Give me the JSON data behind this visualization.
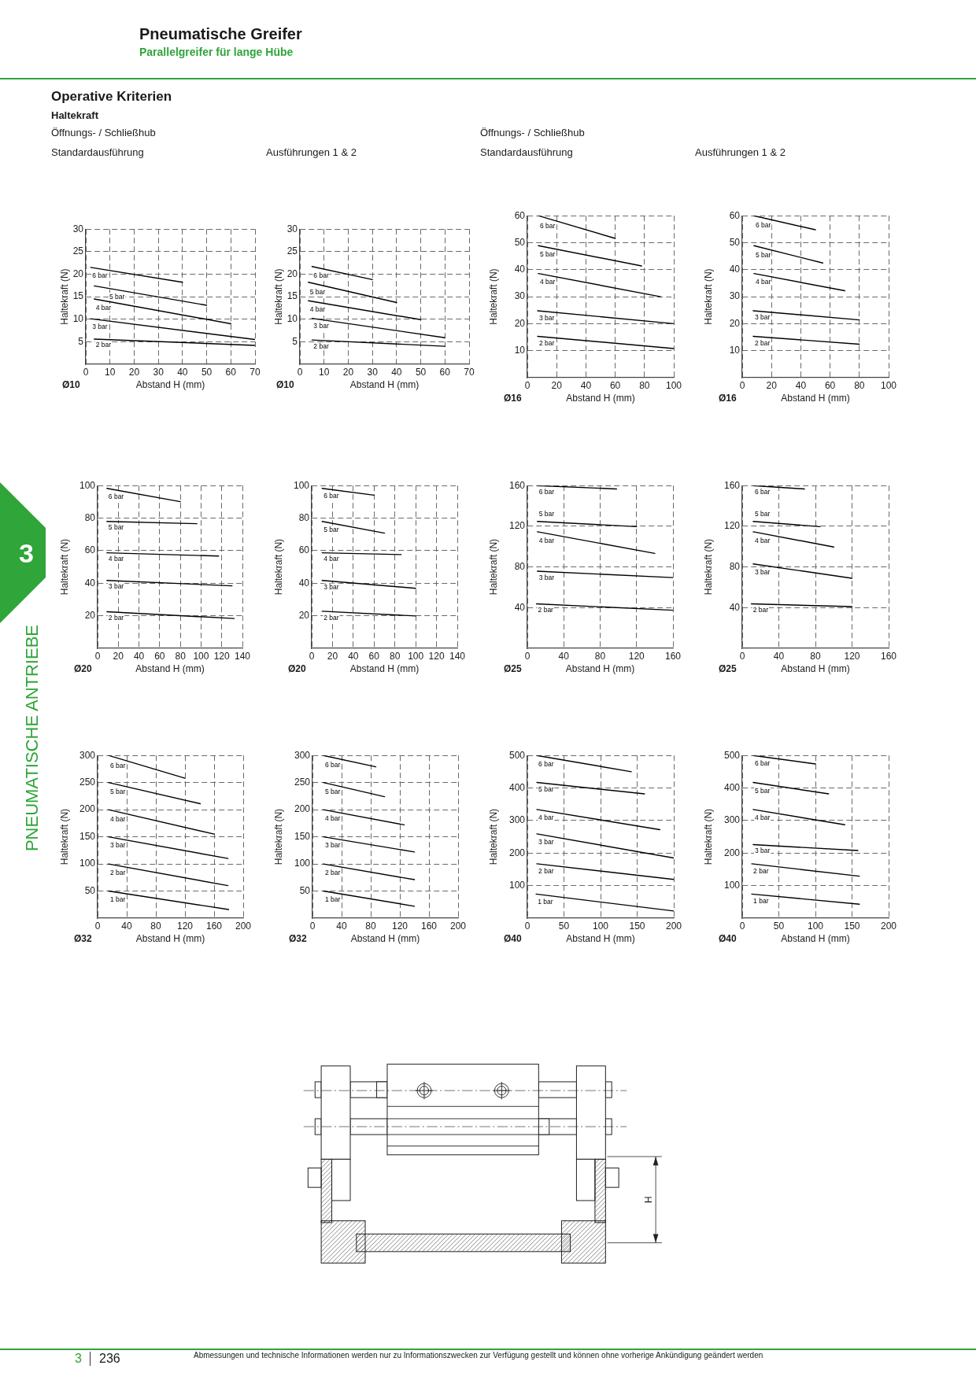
{
  "chart_data": [
    {
      "type": "other",
      "title": "Pneumatische Greifer",
      "subtitle": "Parallelgreifer für lange Hübe",
      "annotations": [
        "Operative Kriterien",
        "Haltekraft",
        "3",
        "PNEUMATISCHE ANTRIEBE",
        "3",
        "236",
        "Abmessungen und technische Informationen werden nur zu Informationszwecken zur Verfügung gestellt und können ohne vorherige Ankündigung geändert werden",
        "H"
      ]
    },
    {
      "type": "line",
      "xlabel": "Abstand H (mm)",
      "ylabel": "Haltekraft (N)",
      "annotations": [
        "Ø10",
        "Öffnungs- / Schließhub",
        "Standardausführung"
      ],
      "xlim": [
        0,
        70
      ],
      "xticks": [
        0,
        10,
        20,
        30,
        40,
        50,
        60,
        70
      ],
      "ylim": [
        0,
        30
      ],
      "yticks": [
        5,
        10,
        15,
        20,
        25,
        30
      ],
      "grid": true,
      "legend": false,
      "marker": "none",
      "line_style": "solid",
      "series": [
        {
          "name": "6 bar",
          "color": "#000000",
          "x": [
            2,
            40
          ],
          "values": [
            21.5,
            18.2
          ]
        },
        {
          "name": "5 bar",
          "color": "#000000",
          "x": [
            3.5,
            50
          ],
          "values": [
            17.4,
            13.1
          ]
        },
        {
          "name": "4 bar",
          "color": "#000000",
          "x": [
            3.5,
            60
          ],
          "values": [
            14.5,
            9
          ]
        },
        {
          "name": "3 bar",
          "color": "#000000",
          "x": [
            2,
            70
          ],
          "values": [
            10.1,
            5.5
          ]
        },
        {
          "name": "2 bar",
          "color": "#000000",
          "x": [
            3.5,
            70
          ],
          "values": [
            5.6,
            4.2
          ]
        }
      ]
    },
    {
      "type": "line",
      "xlabel": "Abstand H (mm)",
      "ylabel": "Haltekraft (N)",
      "annotations": [
        "Ø10",
        "Ausführungen 1 & 2"
      ],
      "xlim": [
        0,
        70
      ],
      "xticks": [
        0,
        10,
        20,
        30,
        40,
        50,
        60,
        70
      ],
      "ylim": [
        0,
        30
      ],
      "yticks": [
        5,
        10,
        15,
        20,
        25,
        30
      ],
      "grid": true,
      "legend": false,
      "marker": "none",
      "line_style": "solid",
      "series": [
        {
          "name": "6 bar",
          "color": "#000000",
          "x": [
            5,
            30
          ],
          "values": [
            21.7,
            18.8
          ]
        },
        {
          "name": "5 bar",
          "color": "#000000",
          "x": [
            3.5,
            40
          ],
          "values": [
            18.2,
            13.7
          ]
        },
        {
          "name": "4 bar",
          "color": "#000000",
          "x": [
            3.5,
            50
          ],
          "values": [
            14.1,
            9.9
          ]
        },
        {
          "name": "3 bar",
          "color": "#000000",
          "x": [
            5,
            60
          ],
          "values": [
            10.2,
            5.9
          ]
        },
        {
          "name": "2 bar",
          "color": "#000000",
          "x": [
            5,
            60
          ],
          "values": [
            5.4,
            4
          ]
        }
      ]
    },
    {
      "type": "line",
      "xlabel": "Abstand H (mm)",
      "ylabel": "Haltekraft (N)",
      "annotations": [
        "Ø16",
        "Öffnungs- / Schließhub",
        "Standardausführung"
      ],
      "xlim": [
        0,
        100
      ],
      "xticks": [
        0,
        20,
        40,
        60,
        80,
        100
      ],
      "ylim": [
        0,
        60
      ],
      "yticks": [
        10,
        20,
        30,
        40,
        50,
        60
      ],
      "grid": true,
      "legend": false,
      "marker": "none",
      "line_style": "solid",
      "series": [
        {
          "name": "6 bar",
          "color": "#000000",
          "x": [
            7.5,
            60
          ],
          "values": [
            60,
            51.6
          ]
        },
        {
          "name": "5 bar",
          "color": "#000000",
          "x": [
            7.5,
            78
          ],
          "values": [
            48.9,
            41.4
          ]
        },
        {
          "name": "4 bar",
          "color": "#000000",
          "x": [
            7.5,
            91
          ],
          "values": [
            38.6,
            30
          ]
        },
        {
          "name": "3 bar",
          "color": "#000000",
          "x": [
            7,
            100
          ],
          "values": [
            24.8,
            20
          ]
        },
        {
          "name": "2 bar",
          "color": "#000000",
          "x": [
            7,
            100
          ],
          "values": [
            15.3,
            10.8
          ]
        }
      ]
    },
    {
      "type": "line",
      "xlabel": "Abstand H (mm)",
      "ylabel": "Haltekraft (N)",
      "annotations": [
        "Ø16",
        "Ausführungen 1 & 2"
      ],
      "xlim": [
        0,
        100
      ],
      "xticks": [
        0,
        20,
        40,
        60,
        80,
        100
      ],
      "ylim": [
        0,
        60
      ],
      "yticks": [
        10,
        20,
        30,
        40,
        50,
        60
      ],
      "grid": true,
      "legend": false,
      "marker": "none",
      "line_style": "solid",
      "series": [
        {
          "name": "6 bar",
          "color": "#000000",
          "x": [
            8,
            50
          ],
          "values": [
            60,
            54.8
          ]
        },
        {
          "name": "5 bar",
          "color": "#000000",
          "x": [
            8,
            55
          ],
          "values": [
            48.9,
            42.5
          ]
        },
        {
          "name": "4 bar",
          "color": "#000000",
          "x": [
            8,
            70
          ],
          "values": [
            38.6,
            32.2
          ]
        },
        {
          "name": "3 bar",
          "color": "#000000",
          "x": [
            7.5,
            80
          ],
          "values": [
            24.8,
            21.4
          ]
        },
        {
          "name": "2 bar",
          "color": "#000000",
          "x": [
            7.5,
            80
          ],
          "values": [
            15.3,
            12.4
          ]
        }
      ]
    },
    {
      "type": "line",
      "xlabel": "Abstand H (mm)",
      "ylabel": "Haltekraft (N)",
      "annotations": [
        "Ø20"
      ],
      "xlim": [
        0,
        140
      ],
      "xticks": [
        0,
        20,
        40,
        60,
        80,
        100,
        120,
        140
      ],
      "ylim": [
        0,
        100
      ],
      "yticks": [
        20,
        40,
        60,
        80,
        100
      ],
      "grid": true,
      "legend": false,
      "marker": "none",
      "line_style": "solid",
      "series": [
        {
          "name": "6 bar",
          "color": "#000000",
          "x": [
            9,
            80
          ],
          "values": [
            98.3,
            90.1
          ]
        },
        {
          "name": "5 bar",
          "color": "#000000",
          "x": [
            9,
            96
          ],
          "values": [
            78,
            76.6
          ]
        },
        {
          "name": "4 bar",
          "color": "#000000",
          "x": [
            9,
            117
          ],
          "values": [
            58.7,
            56.7
          ]
        },
        {
          "name": "3 bar",
          "color": "#000000",
          "x": [
            9,
            130
          ],
          "values": [
            41.7,
            38.4
          ]
        },
        {
          "name": "2 bar",
          "color": "#000000",
          "x": [
            9,
            132
          ],
          "values": [
            22.5,
            18.3
          ]
        }
      ]
    },
    {
      "type": "line",
      "xlabel": "Abstand H (mm)",
      "ylabel": "Haltekraft (N)",
      "annotations": [
        "Ø20"
      ],
      "xlim": [
        0,
        140
      ],
      "xticks": [
        0,
        20,
        40,
        60,
        80,
        100,
        120,
        140
      ],
      "ylim": [
        0,
        100
      ],
      "yticks": [
        20,
        40,
        60,
        80,
        100
      ],
      "grid": true,
      "legend": false,
      "marker": "none",
      "line_style": "solid",
      "series": [
        {
          "name": "6 bar",
          "color": "#000000",
          "x": [
            10,
            60
          ],
          "values": [
            98.3,
            94.1
          ]
        },
        {
          "name": "5 bar",
          "color": "#000000",
          "x": [
            10,
            70
          ],
          "values": [
            78,
            70.8
          ]
        },
        {
          "name": "4 bar",
          "color": "#000000",
          "x": [
            10,
            86
          ],
          "values": [
            58.7,
            57.6
          ]
        },
        {
          "name": "3 bar",
          "color": "#000000",
          "x": [
            10,
            100
          ],
          "values": [
            41.7,
            36.9
          ]
        },
        {
          "name": "2 bar",
          "color": "#000000",
          "x": [
            10,
            100
          ],
          "values": [
            22.8,
            19.9
          ]
        }
      ]
    },
    {
      "type": "line",
      "xlabel": "Abstand H (mm)",
      "ylabel": "Haltekraft (N)",
      "annotations": [
        "Ø25"
      ],
      "xlim": [
        0,
        160
      ],
      "xticks": [
        0,
        40,
        80,
        120,
        160
      ],
      "ylim": [
        0,
        160
      ],
      "yticks": [
        40,
        80,
        120,
        160
      ],
      "grid": true,
      "legend": false,
      "marker": "none",
      "line_style": "solid",
      "series": [
        {
          "name": "6 bar",
          "color": "#000000",
          "x": [
            11,
            98
          ],
          "values": [
            160,
            156.7
          ]
        },
        {
          "name": "5 bar",
          "color": "#000000",
          "x": [
            11,
            120
          ],
          "values": [
            124.8,
            119.6
          ]
        },
        {
          "name": "4 bar",
          "color": "#000000",
          "x": [
            11,
            140
          ],
          "values": [
            114.6,
            93.3
          ]
        },
        {
          "name": "3 bar",
          "color": "#000000",
          "x": [
            11,
            160
          ],
          "values": [
            75.8,
            69.5
          ]
        },
        {
          "name": "2 bar",
          "color": "#000000",
          "x": [
            10,
            160
          ],
          "values": [
            43.7,
            37.4
          ]
        }
      ]
    },
    {
      "type": "line",
      "xlabel": "Abstand H (mm)",
      "ylabel": "Haltekraft (N)",
      "annotations": [
        "Ø25"
      ],
      "xlim": [
        0,
        160
      ],
      "xticks": [
        0,
        40,
        80,
        120,
        160
      ],
      "ylim": [
        0,
        160
      ],
      "yticks": [
        40,
        80,
        120,
        160
      ],
      "grid": true,
      "legend": false,
      "marker": "none",
      "line_style": "solid",
      "series": [
        {
          "name": "6 bar",
          "color": "#000000",
          "x": [
            12,
            68
          ],
          "values": [
            160,
            156.7
          ]
        },
        {
          "name": "5 bar",
          "color": "#000000",
          "x": [
            12,
            85
          ],
          "values": [
            124.8,
            119.6
          ]
        },
        {
          "name": "4 bar",
          "color": "#000000",
          "x": [
            12,
            100
          ],
          "values": [
            114.6,
            99.6
          ]
        },
        {
          "name": "3 bar",
          "color": "#000000",
          "x": [
            12,
            120
          ],
          "values": [
            83,
            68.9
          ]
        },
        {
          "name": "2 bar",
          "color": "#000000",
          "x": [
            10,
            120
          ],
          "values": [
            43.7,
            41
          ]
        }
      ]
    },
    {
      "type": "line",
      "xlabel": "Abstand H (mm)",
      "ylabel": "Haltekraft (N)",
      "annotations": [
        "Ø32"
      ],
      "xlim": [
        0,
        200
      ],
      "xticks": [
        0,
        40,
        80,
        120,
        160,
        200
      ],
      "ylim": [
        0,
        300
      ],
      "yticks": [
        50,
        100,
        150,
        200,
        250,
        300
      ],
      "grid": true,
      "legend": false,
      "marker": "none",
      "line_style": "solid",
      "series": [
        {
          "name": "6 bar",
          "color": "#000000",
          "x": [
            15,
            120
          ],
          "values": [
            300,
            258
          ]
        },
        {
          "name": "5 bar",
          "color": "#000000",
          "x": [
            15,
            141
          ],
          "values": [
            250,
            211
          ]
        },
        {
          "name": "4 bar",
          "color": "#000000",
          "x": [
            15,
            160
          ],
          "values": [
            200,
            155
          ]
        },
        {
          "name": "3 bar",
          "color": "#000000",
          "x": [
            15,
            179
          ],
          "values": [
            150,
            110
          ]
        },
        {
          "name": "2 bar",
          "color": "#000000",
          "x": [
            15,
            179
          ],
          "values": [
            100,
            60
          ]
        },
        {
          "name": "1 bar",
          "color": "#000000",
          "x": [
            15,
            180
          ],
          "values": [
            50,
            16
          ]
        }
      ]
    },
    {
      "type": "line",
      "xlabel": "Abstand H (mm)",
      "ylabel": "Haltekraft (N)",
      "annotations": [
        "Ø32"
      ],
      "xlim": [
        0,
        200
      ],
      "xticks": [
        0,
        40,
        80,
        120,
        160,
        200
      ],
      "ylim": [
        0,
        300
      ],
      "yticks": [
        50,
        100,
        150,
        200,
        250,
        300
      ],
      "grid": true,
      "legend": false,
      "marker": "none",
      "line_style": "solid",
      "series": [
        {
          "name": "6 bar",
          "color": "#000000",
          "x": [
            15,
            87
          ],
          "values": [
            300,
            279
          ]
        },
        {
          "name": "5 bar",
          "color": "#000000",
          "x": [
            15,
            99
          ],
          "values": [
            250,
            224
          ]
        },
        {
          "name": "4 bar",
          "color": "#000000",
          "x": [
            15,
            126
          ],
          "values": [
            200,
            172
          ]
        },
        {
          "name": "3 bar",
          "color": "#000000",
          "x": [
            15,
            140
          ],
          "values": [
            150,
            122
          ]
        },
        {
          "name": "2 bar",
          "color": "#000000",
          "x": [
            15,
            140
          ],
          "values": [
            100,
            71
          ]
        },
        {
          "name": "1 bar",
          "color": "#000000",
          "x": [
            15,
            140
          ],
          "values": [
            50,
            22
          ]
        }
      ]
    },
    {
      "type": "line",
      "xlabel": "Abstand H (mm)",
      "ylabel": "Haltekraft (N)",
      "annotations": [
        "Ø40"
      ],
      "xlim": [
        0,
        200
      ],
      "xticks": [
        0,
        50,
        100,
        150,
        200
      ],
      "ylim": [
        0,
        500
      ],
      "yticks": [
        100,
        200,
        300,
        400,
        500
      ],
      "grid": true,
      "legend": false,
      "marker": "none",
      "line_style": "solid",
      "series": [
        {
          "name": "6 bar",
          "color": "#000000",
          "x": [
            13,
            142
          ],
          "values": [
            500,
            450
          ]
        },
        {
          "name": "5 bar",
          "color": "#000000",
          "x": [
            13,
            160
          ],
          "values": [
            417,
            382
          ]
        },
        {
          "name": "4 bar",
          "color": "#000000",
          "x": [
            13,
            181
          ],
          "values": [
            334,
            272
          ]
        },
        {
          "name": "3 bar",
          "color": "#000000",
          "x": [
            13,
            200
          ],
          "values": [
            259,
            185
          ]
        },
        {
          "name": "2 bar",
          "color": "#000000",
          "x": [
            13,
            200
          ],
          "values": [
            167,
            119
          ]
        },
        {
          "name": "1 bar",
          "color": "#000000",
          "x": [
            12,
            200
          ],
          "values": [
            74,
            22
          ]
        }
      ]
    },
    {
      "type": "line",
      "xlabel": "Abstand H (mm)",
      "ylabel": "Haltekraft (N)",
      "annotations": [
        "Ø40"
      ],
      "xlim": [
        0,
        200
      ],
      "xticks": [
        0,
        50,
        100,
        150,
        200
      ],
      "ylim": [
        0,
        500
      ],
      "yticks": [
        100,
        200,
        300,
        400,
        500
      ],
      "grid": true,
      "legend": false,
      "marker": "none",
      "line_style": "solid",
      "series": [
        {
          "name": "6 bar",
          "color": "#000000",
          "x": [
            15,
            100
          ],
          "values": [
            500,
            474
          ]
        },
        {
          "name": "5 bar",
          "color": "#000000",
          "x": [
            15,
            118
          ],
          "values": [
            417,
            382
          ]
        },
        {
          "name": "4 bar",
          "color": "#000000",
          "x": [
            15,
            140
          ],
          "values": [
            334,
            287
          ]
        },
        {
          "name": "3 bar",
          "color": "#000000",
          "x": [
            15,
            158
          ],
          "values": [
            226,
            208
          ]
        },
        {
          "name": "2 bar",
          "color": "#000000",
          "x": [
            13,
            160
          ],
          "values": [
            167,
            129
          ]
        },
        {
          "name": "1 bar",
          "color": "#000000",
          "x": [
            13,
            160
          ],
          "values": [
            74,
            43
          ]
        }
      ]
    }
  ]
}
